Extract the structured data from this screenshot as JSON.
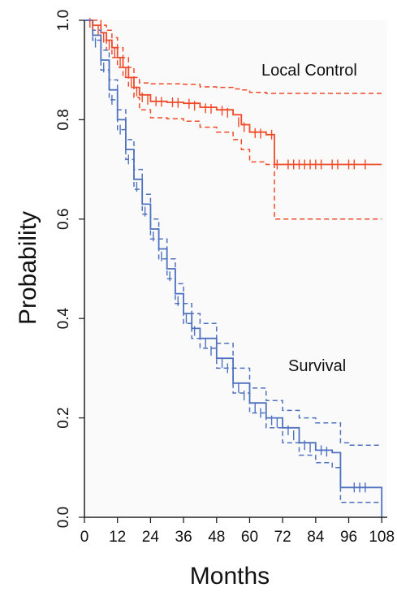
{
  "chart_data": {
    "type": "line",
    "xlabel": "Months",
    "ylabel": "Probability",
    "xlim": [
      0,
      110
    ],
    "ylim": [
      0,
      1.0
    ],
    "xticks": [
      "0",
      "12",
      "24",
      "36",
      "48",
      "60",
      "72",
      "84",
      "96",
      "108"
    ],
    "yticks": [
      "0.0",
      "0.2",
      "0.4",
      "0.6",
      "0.8",
      "1.0"
    ],
    "grid": false,
    "legend": "none",
    "colors": {
      "local_control": "#f04a28",
      "survival": "#4f72c0",
      "plot_bg": "#fafafa"
    },
    "series": [
      {
        "label": "Local Control",
        "x": [
          0,
          3,
          6,
          8,
          10,
          12,
          14,
          16,
          18,
          20,
          24,
          30,
          36,
          42,
          48,
          54,
          57,
          60,
          66,
          69,
          72,
          84,
          96,
          108
        ],
        "y": [
          1.0,
          0.99,
          0.975,
          0.96,
          0.945,
          0.925,
          0.905,
          0.885,
          0.865,
          0.85,
          0.837,
          0.835,
          0.833,
          0.825,
          0.82,
          0.81,
          0.79,
          0.775,
          0.77,
          0.71,
          0.71,
          0.71,
          0.71,
          0.71
        ],
        "ci_upper": [
          1.0,
          1.0,
          0.99,
          0.98,
          0.965,
          0.945,
          0.925,
          0.905,
          0.885,
          0.874,
          0.872,
          0.872,
          0.871,
          0.866,
          0.865,
          0.862,
          0.86,
          0.855,
          0.853,
          0.853,
          0.853,
          0.853,
          0.853,
          0.853
        ],
        "ci_lower": [
          1.0,
          0.98,
          0.96,
          0.94,
          0.925,
          0.905,
          0.885,
          0.865,
          0.845,
          0.82,
          0.804,
          0.802,
          0.797,
          0.785,
          0.775,
          0.76,
          0.74,
          0.715,
          0.71,
          0.6,
          0.6,
          0.6,
          0.6,
          0.6
        ]
      },
      {
        "label": "Survival",
        "x": [
          0,
          3,
          6,
          9,
          12,
          15,
          18,
          21,
          24,
          27,
          30,
          33,
          36,
          39,
          42,
          48,
          54,
          60,
          66,
          72,
          78,
          84,
          90,
          93,
          96,
          102,
          108
        ],
        "y": [
          1.0,
          0.97,
          0.92,
          0.86,
          0.8,
          0.74,
          0.68,
          0.63,
          0.58,
          0.54,
          0.5,
          0.45,
          0.41,
          0.38,
          0.36,
          0.32,
          0.27,
          0.23,
          0.2,
          0.18,
          0.15,
          0.135,
          0.13,
          0.06,
          0.06,
          0.06,
          0.0
        ],
        "ci_upper": [
          1.0,
          0.98,
          0.94,
          0.88,
          0.82,
          0.76,
          0.7,
          0.65,
          0.6,
          0.56,
          0.52,
          0.47,
          0.43,
          0.41,
          0.39,
          0.35,
          0.3,
          0.26,
          0.235,
          0.215,
          0.2,
          0.19,
          0.19,
          0.15,
          0.145,
          0.145,
          0.145
        ],
        "ci_lower": [
          1.0,
          0.96,
          0.9,
          0.84,
          0.78,
          0.72,
          0.66,
          0.61,
          0.56,
          0.52,
          0.48,
          0.43,
          0.39,
          0.36,
          0.34,
          0.3,
          0.25,
          0.21,
          0.18,
          0.15,
          0.125,
          0.11,
          0.1,
          0.03,
          0.03,
          0.03,
          0.03
        ]
      }
    ],
    "censor_marks": {
      "Local Control": [
        [
          2,
          0.995
        ],
        [
          3,
          0.99
        ],
        [
          5,
          0.98
        ],
        [
          7,
          0.965
        ],
        [
          9,
          0.95
        ],
        [
          11,
          0.935
        ],
        [
          13,
          0.915
        ],
        [
          15,
          0.895
        ],
        [
          17,
          0.875
        ],
        [
          19,
          0.857
        ],
        [
          21,
          0.845
        ],
        [
          23,
          0.84
        ],
        [
          26,
          0.837
        ],
        [
          28,
          0.836
        ],
        [
          32,
          0.835
        ],
        [
          34,
          0.834
        ],
        [
          38,
          0.832
        ],
        [
          40,
          0.828
        ],
        [
          44,
          0.823
        ],
        [
          46,
          0.822
        ],
        [
          50,
          0.818
        ],
        [
          52,
          0.814
        ],
        [
          56,
          0.795
        ],
        [
          58,
          0.785
        ],
        [
          62,
          0.773
        ],
        [
          64,
          0.772
        ],
        [
          68,
          0.77
        ],
        [
          70,
          0.71
        ],
        [
          74,
          0.71
        ],
        [
          76,
          0.71
        ],
        [
          78,
          0.71
        ],
        [
          80,
          0.71
        ],
        [
          82,
          0.71
        ],
        [
          84,
          0.71
        ],
        [
          86,
          0.71
        ],
        [
          90,
          0.71
        ],
        [
          92,
          0.71
        ],
        [
          96,
          0.71
        ],
        [
          98,
          0.71
        ],
        [
          102,
          0.71
        ]
      ],
      "Survival": [
        [
          4,
          0.955
        ],
        [
          7,
          0.905
        ],
        [
          10,
          0.84
        ],
        [
          13,
          0.78
        ],
        [
          16,
          0.72
        ],
        [
          19,
          0.665
        ],
        [
          22,
          0.615
        ],
        [
          25,
          0.565
        ],
        [
          28,
          0.525
        ],
        [
          31,
          0.485
        ],
        [
          34,
          0.435
        ],
        [
          37,
          0.4
        ],
        [
          40,
          0.375
        ],
        [
          44,
          0.35
        ],
        [
          46,
          0.335
        ],
        [
          50,
          0.31
        ],
        [
          52,
          0.3
        ],
        [
          56,
          0.26
        ],
        [
          58,
          0.245
        ],
        [
          62,
          0.22
        ],
        [
          64,
          0.21
        ],
        [
          68,
          0.195
        ],
        [
          70,
          0.19
        ],
        [
          74,
          0.175
        ],
        [
          76,
          0.165
        ],
        [
          80,
          0.145
        ],
        [
          82,
          0.14
        ],
        [
          86,
          0.135
        ],
        [
          88,
          0.132
        ],
        [
          98,
          0.06
        ],
        [
          100,
          0.06
        ],
        [
          102,
          0.06
        ]
      ]
    }
  }
}
